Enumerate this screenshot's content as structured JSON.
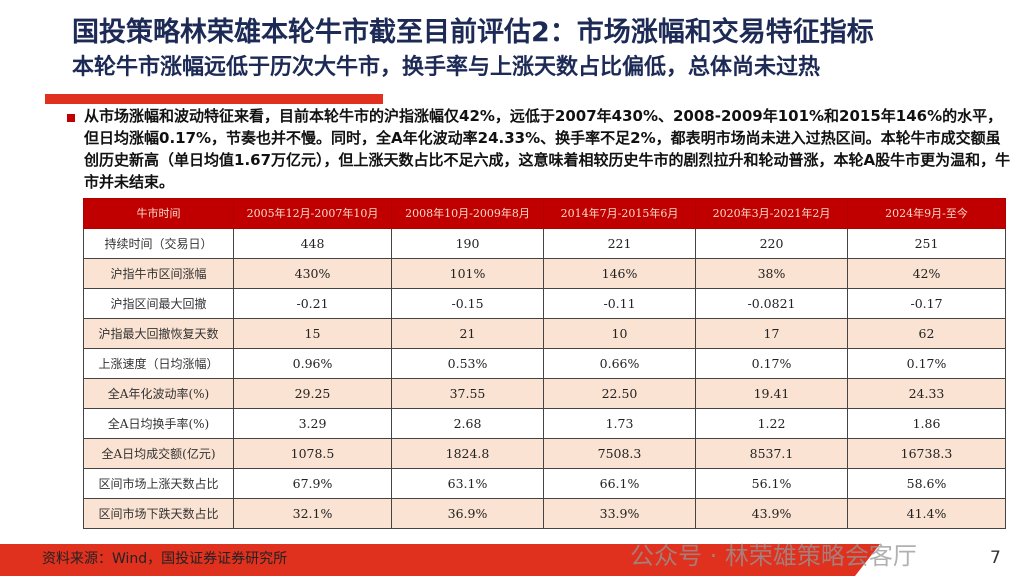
{
  "title": "国投策略林荣雄本轮牛市截至目前评估2：市场涨幅和交易特征指标",
  "subtitle": "本轮牛市涨幅远低于历次大牛市，换手率与上涨天数占比偏低，总体尚未过热",
  "paragraph": "从市场涨幅和波动特征来看，目前本轮牛市的沪指涨幅仅42%，远低于2007年430%、2008-2009年101%和2015年146%的水平，但日均涨幅0.17%，节奏也并不慢。同时，全A年化波动率24.33%、换手率不足2%，都表明市场尚未进入过热区间。本轮牛市成交额虽创历史新高（单日均值1.67万亿元），但上涨天数占比不足六成，这意味着相较历史牛市的剧烈拉升和轮动普涨，本轮A股牛市更为温和，牛市并未结束。",
  "table": {
    "headers": [
      "牛市时间",
      "2005年12月-2007年10月",
      "2008年10月-2009年8月",
      "2014年7月-2015年6月",
      "2020年3月-2021年2月",
      "2024年9月-至今"
    ],
    "rows": [
      [
        "持续时间（交易日）",
        "448",
        "190",
        "221",
        "220",
        "251"
      ],
      [
        "沪指牛市区间涨幅",
        "430%",
        "101%",
        "146%",
        "38%",
        "42%"
      ],
      [
        "沪指区间最大回撤",
        "-0.21",
        "-0.15",
        "-0.11",
        "-0.0821",
        "-0.17"
      ],
      [
        "沪指最大回撤恢复天数",
        "15",
        "21",
        "10",
        "17",
        "62"
      ],
      [
        "上涨速度（日均涨幅）",
        "0.96%",
        "0.53%",
        "0.66%",
        "0.17%",
        "0.17%"
      ],
      [
        "全A年化波动率(%)",
        "29.25",
        "37.55",
        "22.50",
        "19.41",
        "24.33"
      ],
      [
        "全A日均换手率(%)",
        "3.29",
        "2.68",
        "1.73",
        "1.22",
        "1.86"
      ],
      [
        "全A日均成交额(亿元)",
        "1078.5",
        "1824.8",
        "7508.3",
        "8537.1",
        "16738.3"
      ],
      [
        "区间市场上涨天数占比",
        "67.9%",
        "63.1%",
        "66.1%",
        "56.1%",
        "58.6%"
      ],
      [
        "区间市场下跌天数占比",
        "32.1%",
        "36.9%",
        "33.9%",
        "43.9%",
        "41.4%"
      ]
    ]
  },
  "source": "资料来源：Wind，国投证券证券研究所",
  "page_number": "7",
  "watermark": "公众号 · 林荣雄策略会客厅",
  "colors": {
    "accent": "#c00000",
    "title": "#1c2a55",
    "row_alt": "#fbe3d3"
  }
}
